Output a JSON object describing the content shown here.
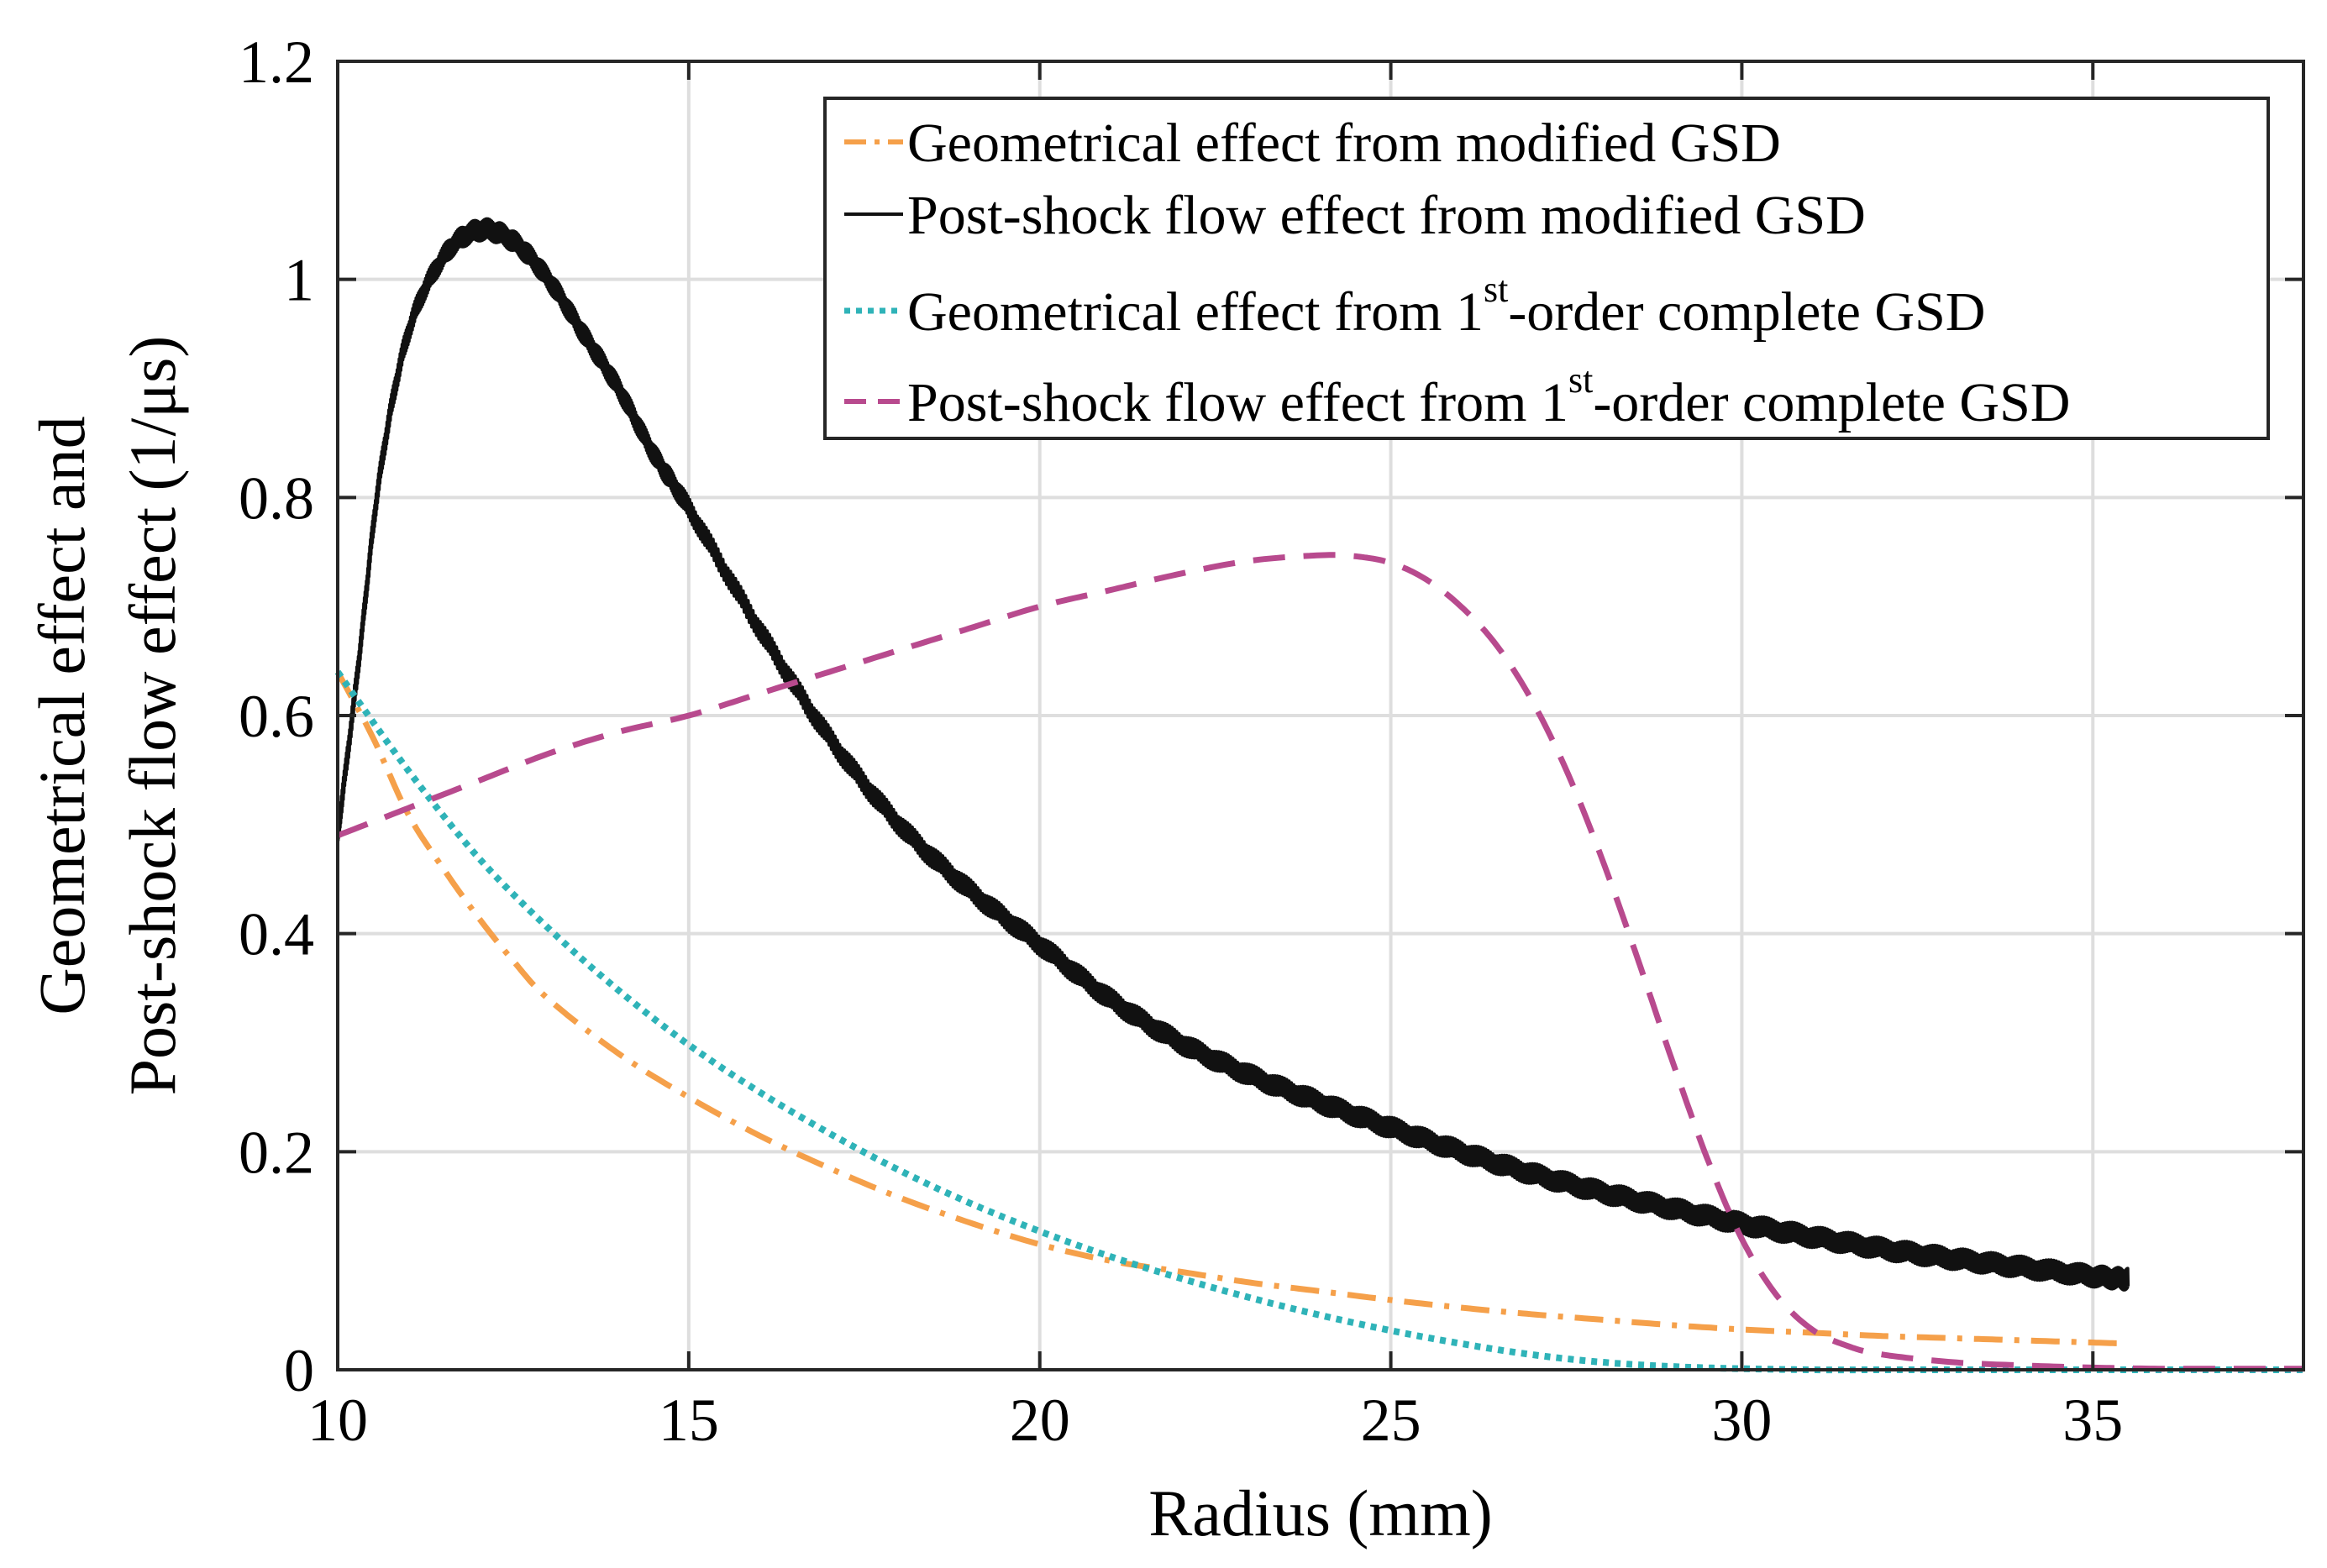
{
  "chart_data": {
    "type": "line",
    "title": "",
    "xlabel": "Radius (mm)",
    "ylabel_line1": "Geometrical effect and",
    "ylabel_line2": "Post-shock flow effect (1/μs)",
    "xlim": [
      10,
      38
    ],
    "ylim": [
      0,
      1.2
    ],
    "x_ticks": [
      10,
      15,
      20,
      25,
      30,
      35
    ],
    "x_tick_labels": [
      "10",
      "15",
      "20",
      "25",
      "30",
      "35"
    ],
    "y_ticks": [
      0,
      0.2,
      0.4,
      0.6,
      0.8,
      1.0,
      1.2
    ],
    "y_tick_labels": [
      "0",
      "0.2",
      "0.4",
      "0.6",
      "0.8",
      "1",
      "1.2"
    ],
    "grid": true,
    "legend_position": "top-right",
    "series": [
      {
        "key": "geo_mod",
        "legend_text": "Geometrical effect from modified GSD",
        "color": "#f5a04a",
        "style": "dash-dot",
        "x": [
          10,
          10.5,
          11,
          11.5,
          12,
          12.5,
          13,
          14,
          15,
          16,
          17,
          18,
          19,
          20,
          21,
          22,
          23,
          24,
          25,
          26,
          27,
          28,
          29,
          30,
          31,
          32,
          33,
          34,
          35,
          35.5
        ],
        "y": [
          0.64,
          0.58,
          0.51,
          0.46,
          0.415,
          0.375,
          0.34,
          0.29,
          0.25,
          0.215,
          0.185,
          0.158,
          0.135,
          0.115,
          0.1,
          0.09,
          0.08,
          0.072,
          0.064,
          0.057,
          0.051,
          0.046,
          0.041,
          0.037,
          0.034,
          0.031,
          0.029,
          0.027,
          0.025,
          0.024
        ]
      },
      {
        "key": "flow_mod",
        "legend_text": "Post-shock flow effect from modified GSD",
        "color": "#111111",
        "style": "solid-noisy",
        "x": [
          10,
          10.3,
          10.6,
          11,
          11.5,
          12,
          12.5,
          13,
          13.5,
          14,
          14.5,
          15,
          16,
          17,
          18,
          19,
          20,
          21,
          22,
          23,
          24,
          25,
          26,
          27,
          28,
          29,
          30,
          31,
          32,
          33,
          34,
          35,
          35.5
        ],
        "y": [
          0.49,
          0.65,
          0.82,
          0.95,
          1.02,
          1.045,
          1.035,
          1.0,
          0.95,
          0.9,
          0.84,
          0.79,
          0.68,
          0.58,
          0.5,
          0.44,
          0.39,
          0.34,
          0.3,
          0.27,
          0.245,
          0.222,
          0.2,
          0.18,
          0.163,
          0.148,
          0.134,
          0.122,
          0.111,
          0.102,
          0.094,
          0.086,
          0.083
        ]
      },
      {
        "key": "geo_first",
        "legend_text_main": "Geometrical effect from 1",
        "legend_text_sup": "st",
        "legend_text_tail": "-order complete GSD",
        "color": "#2fb3b8",
        "style": "dotted",
        "x": [
          10,
          11,
          12,
          13,
          14,
          15,
          16,
          17,
          18,
          19,
          20,
          21,
          22,
          23,
          24,
          25,
          26,
          27,
          28,
          29,
          30,
          31,
          32,
          33,
          34,
          35,
          36,
          37,
          38
        ],
        "y": [
          0.64,
          0.55,
          0.47,
          0.405,
          0.348,
          0.298,
          0.255,
          0.217,
          0.183,
          0.153,
          0.127,
          0.104,
          0.084,
          0.066,
          0.05,
          0.036,
          0.024,
          0.014,
          0.007,
          0.003,
          0.001,
          0.0,
          0.0,
          0.0,
          0.0,
          0.0,
          0.0,
          0.0,
          0.0
        ]
      },
      {
        "key": "flow_first",
        "legend_text_main": "Post-shock flow effect from 1",
        "legend_text_sup": "st",
        "legend_text_tail": "-order complete GSD",
        "color": "#b84a8e",
        "style": "dashed",
        "x": [
          10,
          11,
          12,
          13,
          14,
          15,
          16,
          17,
          18,
          19,
          20,
          21,
          22,
          23,
          24,
          24.5,
          25,
          25.5,
          26,
          26.5,
          27,
          27.5,
          28,
          28.5,
          29,
          29.5,
          30,
          30.5,
          31,
          31.5,
          32,
          33,
          34,
          35,
          36,
          37,
          38
        ],
        "y": [
          0.49,
          0.515,
          0.54,
          0.565,
          0.585,
          0.6,
          0.62,
          0.64,
          0.66,
          0.68,
          0.7,
          0.715,
          0.73,
          0.742,
          0.747,
          0.746,
          0.74,
          0.725,
          0.7,
          0.665,
          0.615,
          0.55,
          0.47,
          0.38,
          0.285,
          0.195,
          0.12,
          0.068,
          0.037,
          0.022,
          0.014,
          0.007,
          0.004,
          0.002,
          0.001,
          0.001,
          0.001
        ]
      }
    ]
  }
}
